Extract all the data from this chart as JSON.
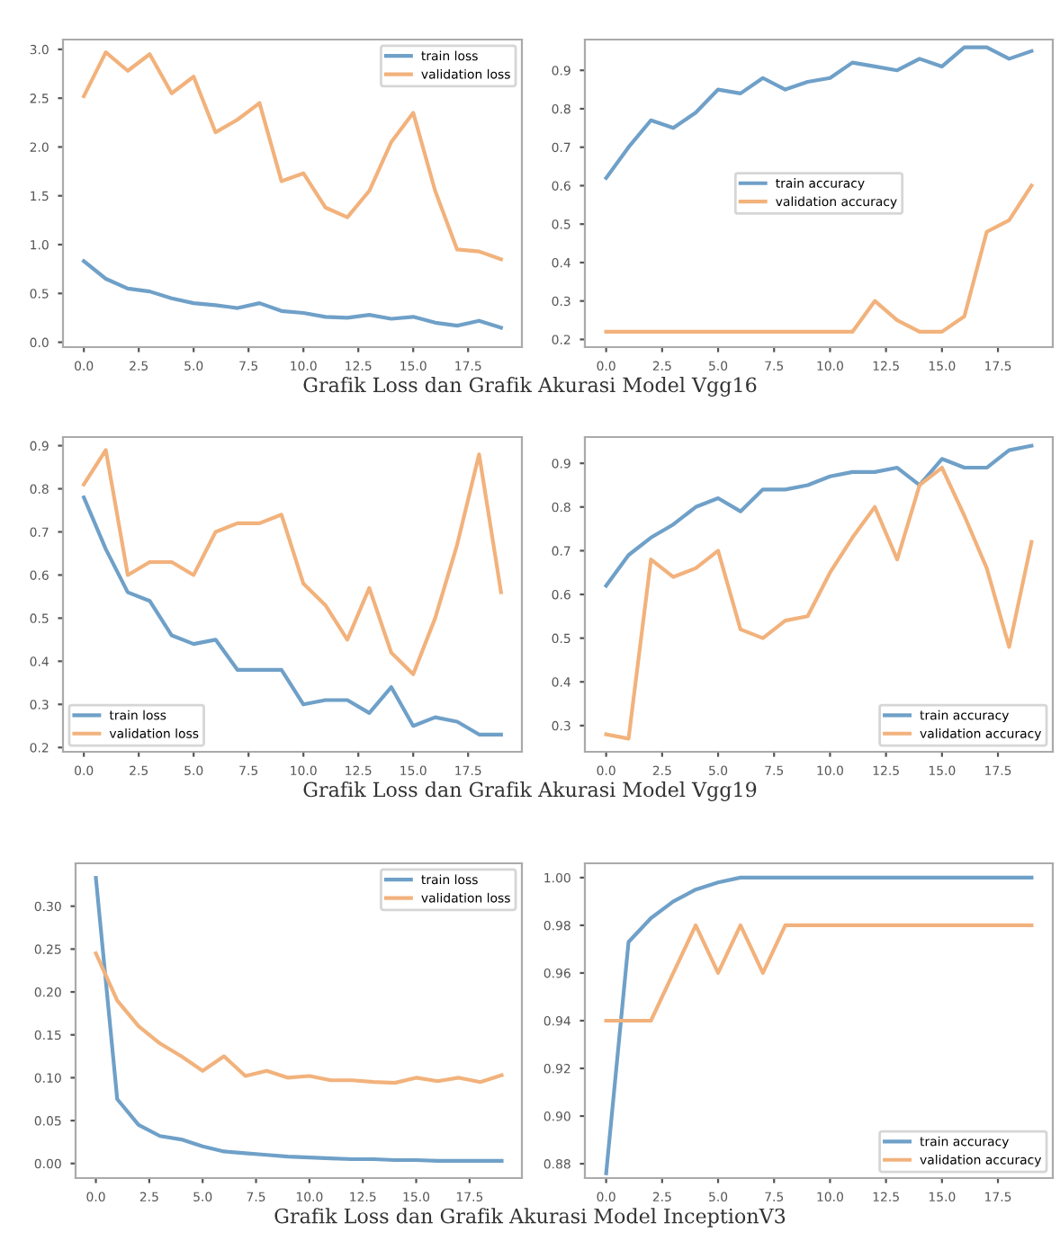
{
  "chart_data": [
    {
      "type": "line",
      "x": [
        0,
        1,
        2,
        3,
        4,
        5,
        6,
        7,
        8,
        9,
        10,
        11,
        12,
        13,
        14,
        15,
        16,
        17,
        18,
        19
      ],
      "xlim": [
        -0.95,
        19.95
      ],
      "xticks": [
        {
          "value": 0,
          "label": "0.0"
        },
        2.5,
        {
          "value": 5,
          "label": "5.0"
        },
        7.5,
        {
          "value": 10,
          "label": "10.0"
        },
        12.5,
        {
          "value": 15,
          "label": "15.0"
        },
        17.5
      ],
      "ylim": [
        -0.05,
        3.1
      ],
      "yticks": [
        {
          "value": 0,
          "label": "0.0"
        },
        0.5,
        {
          "value": 1,
          "label": "1.0"
        },
        1.5,
        {
          "value": 2,
          "label": "2.0"
        },
        2.5,
        {
          "value": 3,
          "label": "3.0"
        }
      ],
      "legend": "top right",
      "grid": false,
      "series": [
        {
          "name": "train loss",
          "color": "#6fa0c8",
          "values": [
            0.83,
            0.65,
            0.55,
            0.52,
            0.45,
            0.4,
            0.38,
            0.35,
            0.4,
            0.32,
            0.3,
            0.26,
            0.25,
            0.28,
            0.24,
            0.26,
            0.2,
            0.17,
            0.22,
            0.15
          ]
        },
        {
          "name": "validation loss",
          "color": "#f2b27c",
          "values": [
            2.52,
            2.97,
            2.78,
            2.95,
            2.55,
            2.72,
            2.15,
            2.28,
            2.45,
            1.65,
            1.73,
            1.38,
            1.28,
            1.55,
            2.05,
            2.35,
            1.55,
            0.95,
            0.93,
            0.85
          ]
        }
      ],
      "annotations": [
        "Grafik Loss dan Grafik Akurasi Model Vgg16"
      ]
    },
    {
      "type": "line",
      "x": [
        0,
        1,
        2,
        3,
        4,
        5,
        6,
        7,
        8,
        9,
        10,
        11,
        12,
        13,
        14,
        15,
        16,
        17,
        18,
        19
      ],
      "xlim": [
        -0.95,
        19.95
      ],
      "xticks": [
        {
          "value": 0,
          "label": "0.0"
        },
        2.5,
        {
          "value": 5,
          "label": "5.0"
        },
        7.5,
        {
          "value": 10,
          "label": "10.0"
        },
        12.5,
        {
          "value": 15,
          "label": "15.0"
        },
        17.5
      ],
      "ylim": [
        0.18,
        0.98
      ],
      "yticks": [
        0.2,
        0.3,
        0.4,
        0.5,
        0.6,
        0.7,
        0.8,
        0.9
      ],
      "legend": "center",
      "grid": false,
      "series": [
        {
          "name": "train accuracy",
          "color": "#6fa0c8",
          "values": [
            0.62,
            0.7,
            0.77,
            0.75,
            0.79,
            0.85,
            0.84,
            0.88,
            0.85,
            0.87,
            0.88,
            0.92,
            0.91,
            0.9,
            0.93,
            0.91,
            0.96,
            0.96,
            0.93,
            0.95
          ]
        },
        {
          "name": "validation accuracy",
          "color": "#f2b27c",
          "values": [
            0.22,
            0.22,
            0.22,
            0.22,
            0.22,
            0.22,
            0.22,
            0.22,
            0.22,
            0.22,
            0.22,
            0.22,
            0.3,
            0.25,
            0.22,
            0.22,
            0.26,
            0.48,
            0.51,
            0.6
          ]
        }
      ]
    },
    {
      "type": "line",
      "x": [
        0,
        1,
        2,
        3,
        4,
        5,
        6,
        7,
        8,
        9,
        10,
        11,
        12,
        13,
        14,
        15,
        16,
        17,
        18,
        19
      ],
      "xlim": [
        -0.95,
        19.95
      ],
      "xticks": [
        {
          "value": 0,
          "label": "0.0"
        },
        2.5,
        {
          "value": 5,
          "label": "5.0"
        },
        7.5,
        {
          "value": 10,
          "label": "10.0"
        },
        12.5,
        {
          "value": 15,
          "label": "15.0"
        },
        17.5
      ],
      "ylim": [
        0.19,
        0.92
      ],
      "yticks": [
        0.2,
        0.3,
        0.4,
        0.5,
        0.6,
        0.7,
        0.8,
        0.9
      ],
      "legend": "bottom left",
      "grid": false,
      "series": [
        {
          "name": "train loss",
          "color": "#6fa0c8",
          "values": [
            0.78,
            0.66,
            0.56,
            0.54,
            0.46,
            0.44,
            0.45,
            0.38,
            0.38,
            0.38,
            0.3,
            0.31,
            0.31,
            0.28,
            0.34,
            0.25,
            0.27,
            0.26,
            0.23,
            0.23
          ]
        },
        {
          "name": "validation loss",
          "color": "#f2b27c",
          "values": [
            0.81,
            0.89,
            0.6,
            0.63,
            0.63,
            0.6,
            0.7,
            0.72,
            0.72,
            0.74,
            0.58,
            0.53,
            0.45,
            0.57,
            0.42,
            0.37,
            0.5,
            0.67,
            0.88,
            0.56
          ]
        }
      ],
      "annotations": [
        "Grafik Loss dan Grafik Akurasi Model Vgg19"
      ]
    },
    {
      "type": "line",
      "x": [
        0,
        1,
        2,
        3,
        4,
        5,
        6,
        7,
        8,
        9,
        10,
        11,
        12,
        13,
        14,
        15,
        16,
        17,
        18,
        19
      ],
      "xlim": [
        -0.95,
        19.95
      ],
      "xticks": [
        {
          "value": 0,
          "label": "0.0"
        },
        2.5,
        {
          "value": 5,
          "label": "5.0"
        },
        7.5,
        {
          "value": 10,
          "label": "10.0"
        },
        12.5,
        {
          "value": 15,
          "label": "15.0"
        },
        17.5
      ],
      "ylim": [
        0.24,
        0.96
      ],
      "yticks": [
        0.3,
        0.4,
        0.5,
        0.6,
        0.7,
        0.8,
        0.9
      ],
      "legend": "bottom right",
      "grid": false,
      "series": [
        {
          "name": "train accuracy",
          "color": "#6fa0c8",
          "values": [
            0.62,
            0.69,
            0.73,
            0.76,
            0.8,
            0.82,
            0.79,
            0.84,
            0.84,
            0.85,
            0.87,
            0.88,
            0.88,
            0.89,
            0.85,
            0.91,
            0.89,
            0.89,
            0.93,
            0.94
          ]
        },
        {
          "name": "validation accuracy",
          "color": "#f2b27c",
          "values": [
            0.28,
            0.27,
            0.68,
            0.64,
            0.66,
            0.7,
            0.52,
            0.5,
            0.54,
            0.55,
            0.65,
            0.73,
            0.8,
            0.68,
            0.85,
            0.89,
            0.78,
            0.66,
            0.48,
            0.72
          ]
        }
      ]
    },
    {
      "type": "line",
      "x": [
        0,
        1,
        2,
        3,
        4,
        5,
        6,
        7,
        8,
        9,
        10,
        11,
        12,
        13,
        14,
        15,
        16,
        17,
        18,
        19
      ],
      "xlim": [
        -0.95,
        19.95
      ],
      "xticks": [
        {
          "value": 0,
          "label": "0.0"
        },
        2.5,
        {
          "value": 5,
          "label": "5.0"
        },
        7.5,
        {
          "value": 10,
          "label": "10.0"
        },
        12.5,
        {
          "value": 15,
          "label": "15.0"
        },
        17.5
      ],
      "ylim": [
        -0.017,
        0.35
      ],
      "yticks": [
        {
          "value": 0,
          "label": "0.00"
        },
        {
          "value": 0.05,
          "label": "0.05"
        },
        {
          "value": 0.1,
          "label": "0.10"
        },
        {
          "value": 0.15,
          "label": "0.15"
        },
        {
          "value": 0.2,
          "label": "0.20"
        },
        {
          "value": 0.25,
          "label": "0.25"
        },
        {
          "value": 0.3,
          "label": "0.30"
        }
      ],
      "legend": "top right",
      "grid": false,
      "series": [
        {
          "name": "train loss",
          "color": "#6fa0c8",
          "values": [
            0.333,
            0.075,
            0.045,
            0.032,
            0.028,
            0.02,
            0.014,
            0.012,
            0.01,
            0.008,
            0.007,
            0.006,
            0.005,
            0.005,
            0.004,
            0.004,
            0.003,
            0.003,
            0.003,
            0.003
          ]
        },
        {
          "name": "validation loss",
          "color": "#f2b27c",
          "values": [
            0.245,
            0.19,
            0.16,
            0.14,
            0.125,
            0.108,
            0.125,
            0.102,
            0.108,
            0.1,
            0.102,
            0.097,
            0.097,
            0.095,
            0.094,
            0.1,
            0.096,
            0.1,
            0.095,
            0.103
          ]
        }
      ],
      "annotations": [
        "Grafik Loss dan Grafik Akurasi Model InceptionV3"
      ]
    },
    {
      "type": "line",
      "x": [
        0,
        1,
        2,
        3,
        4,
        5,
        6,
        7,
        8,
        9,
        10,
        11,
        12,
        13,
        14,
        15,
        16,
        17,
        18,
        19
      ],
      "xlim": [
        -0.95,
        19.95
      ],
      "xticks": [
        {
          "value": 0,
          "label": "0.0"
        },
        2.5,
        {
          "value": 5,
          "label": "5.0"
        },
        7.5,
        {
          "value": 10,
          "label": "10.0"
        },
        12.5,
        {
          "value": 15,
          "label": "15.0"
        },
        17.5
      ],
      "ylim": [
        0.874,
        1.006
      ],
      "yticks": [
        {
          "value": 0.88,
          "label": "0.88"
        },
        {
          "value": 0.9,
          "label": "0.90"
        },
        {
          "value": 0.92,
          "label": "0.92"
        },
        {
          "value": 0.94,
          "label": "0.94"
        },
        {
          "value": 0.96,
          "label": "0.96"
        },
        {
          "value": 0.98,
          "label": "0.98"
        },
        {
          "value": 1,
          "label": "1.00"
        }
      ],
      "legend": "bottom right",
      "grid": false,
      "series": [
        {
          "name": "train accuracy",
          "color": "#6fa0c8",
          "values": [
            0.876,
            0.973,
            0.983,
            0.99,
            0.995,
            0.998,
            1.0,
            1.0,
            1.0,
            1.0,
            1.0,
            1.0,
            1.0,
            1.0,
            1.0,
            1.0,
            1.0,
            1.0,
            1.0,
            1.0
          ]
        },
        {
          "name": "validation accuracy",
          "color": "#f2b27c",
          "values": [
            0.94,
            0.94,
            0.94,
            0.96,
            0.98,
            0.96,
            0.98,
            0.96,
            0.98,
            0.98,
            0.98,
            0.98,
            0.98,
            0.98,
            0.98,
            0.98,
            0.98,
            0.98,
            0.98,
            0.98
          ]
        }
      ]
    }
  ]
}
